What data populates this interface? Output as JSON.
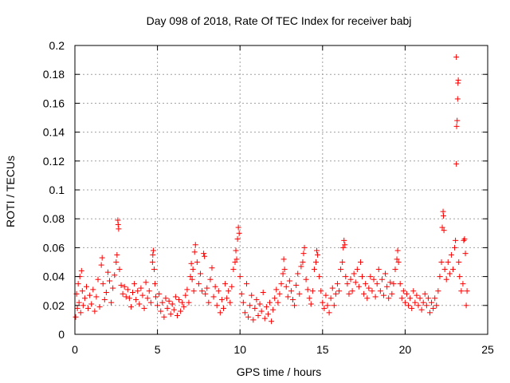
{
  "colors": {
    "series": "#ff0000",
    "grid": "#a0a0a0",
    "axis": "#000000",
    "background": "#ffffff"
  },
  "chart_data": {
    "type": "scatter",
    "title": "Day 098 of 2018, Rate Of TEC Index for receiver babj",
    "xlabel": "GPS time / hours",
    "ylabel": "ROTI / TECUs",
    "xlim": [
      0,
      25
    ],
    "ylim": [
      0,
      0.2
    ],
    "x_ticks": [
      0,
      5,
      10,
      15,
      20,
      25
    ],
    "x_tick_labels": [
      "0",
      "5",
      "10",
      "15",
      "20",
      "25"
    ],
    "y_ticks": [
      0,
      0.02,
      0.04,
      0.06,
      0.08,
      0.1,
      0.12,
      0.14,
      0.16,
      0.18,
      0.2
    ],
    "y_tick_labels": [
      "0",
      "0.02",
      "0.04",
      "0.06",
      "0.08",
      "0.1",
      "0.12",
      "0.14",
      "0.16",
      "0.18",
      "0.2"
    ],
    "grid": true,
    "marker": "+",
    "series": [
      {
        "name": "ROTI",
        "color": "#ff0000",
        "points": [
          [
            0.05,
            0.012
          ],
          [
            0.1,
            0.028
          ],
          [
            0.15,
            0.018
          ],
          [
            0.2,
            0.035
          ],
          [
            0.25,
            0.022
          ],
          [
            0.3,
            0.04
          ],
          [
            0.35,
            0.015
          ],
          [
            0.4,
            0.044
          ],
          [
            0.45,
            0.03
          ],
          [
            0.5,
            0.02
          ],
          [
            0.6,
            0.025
          ],
          [
            0.7,
            0.033
          ],
          [
            0.8,
            0.018
          ],
          [
            0.9,
            0.027
          ],
          [
            1.0,
            0.021
          ],
          [
            1.1,
            0.031
          ],
          [
            1.2,
            0.016
          ],
          [
            1.3,
            0.026
          ],
          [
            1.4,
            0.038
          ],
          [
            1.5,
            0.019
          ],
          [
            1.6,
            0.048
          ],
          [
            1.65,
            0.053
          ],
          [
            1.7,
            0.035
          ],
          [
            1.8,
            0.024
          ],
          [
            1.9,
            0.029
          ],
          [
            2.0,
            0.043
          ],
          [
            2.1,
            0.037
          ],
          [
            2.2,
            0.022
          ],
          [
            2.3,
            0.032
          ],
          [
            2.4,
            0.041
          ],
          [
            2.5,
            0.05
          ],
          [
            2.55,
            0.055
          ],
          [
            2.6,
            0.079
          ],
          [
            2.62,
            0.076
          ],
          [
            2.65,
            0.073
          ],
          [
            2.7,
            0.045
          ],
          [
            2.8,
            0.034
          ],
          [
            2.9,
            0.028
          ],
          [
            3.0,
            0.033
          ],
          [
            3.1,
            0.026
          ],
          [
            3.2,
            0.031
          ],
          [
            3.3,
            0.025
          ],
          [
            3.4,
            0.019
          ],
          [
            3.5,
            0.029
          ],
          [
            3.6,
            0.035
          ],
          [
            3.7,
            0.024
          ],
          [
            3.8,
            0.03
          ],
          [
            3.9,
            0.021
          ],
          [
            4.0,
            0.032
          ],
          [
            4.1,
            0.027
          ],
          [
            4.2,
            0.018
          ],
          [
            4.3,
            0.036
          ],
          [
            4.4,
            0.025
          ],
          [
            4.5,
            0.03
          ],
          [
            4.6,
            0.022
          ],
          [
            4.7,
            0.05
          ],
          [
            4.72,
            0.055
          ],
          [
            4.75,
            0.058
          ],
          [
            4.8,
            0.045
          ],
          [
            4.85,
            0.035
          ],
          [
            4.9,
            0.026
          ],
          [
            5.0,
            0.02
          ],
          [
            5.1,
            0.028
          ],
          [
            5.2,
            0.016
          ],
          [
            5.3,
            0.022
          ],
          [
            5.4,
            0.012
          ],
          [
            5.5,
            0.025
          ],
          [
            5.6,
            0.018
          ],
          [
            5.7,
            0.023
          ],
          [
            5.8,
            0.014
          ],
          [
            5.9,
            0.021
          ],
          [
            6.0,
            0.017
          ],
          [
            6.1,
            0.026
          ],
          [
            6.2,
            0.013
          ],
          [
            6.3,
            0.024
          ],
          [
            6.4,
            0.016
          ],
          [
            6.5,
            0.022
          ],
          [
            6.6,
            0.019
          ],
          [
            6.7,
            0.027
          ],
          [
            6.8,
            0.031
          ],
          [
            6.9,
            0.022
          ],
          [
            7.0,
            0.04
          ],
          [
            7.05,
            0.049
          ],
          [
            7.1,
            0.038
          ],
          [
            7.15,
            0.045
          ],
          [
            7.2,
            0.03
          ],
          [
            7.25,
            0.057
          ],
          [
            7.3,
            0.062
          ],
          [
            7.4,
            0.05
          ],
          [
            7.5,
            0.035
          ],
          [
            7.6,
            0.042
          ],
          [
            7.7,
            0.03
          ],
          [
            7.8,
            0.056
          ],
          [
            7.85,
            0.054
          ],
          [
            7.9,
            0.028
          ],
          [
            8.0,
            0.032
          ],
          [
            8.1,
            0.022
          ],
          [
            8.2,
            0.038
          ],
          [
            8.3,
            0.046
          ],
          [
            8.4,
            0.026
          ],
          [
            8.5,
            0.033
          ],
          [
            8.6,
            0.02
          ],
          [
            8.7,
            0.03
          ],
          [
            8.8,
            0.015
          ],
          [
            8.9,
            0.024
          ],
          [
            9.0,
            0.018
          ],
          [
            9.1,
            0.035
          ],
          [
            9.2,
            0.025
          ],
          [
            9.3,
            0.03
          ],
          [
            9.4,
            0.022
          ],
          [
            9.5,
            0.033
          ],
          [
            9.6,
            0.045
          ],
          [
            9.7,
            0.05
          ],
          [
            9.75,
            0.058
          ],
          [
            9.8,
            0.052
          ],
          [
            9.85,
            0.066
          ],
          [
            9.9,
            0.074
          ],
          [
            9.95,
            0.07
          ],
          [
            10.0,
            0.04
          ],
          [
            10.1,
            0.028
          ],
          [
            10.2,
            0.022
          ],
          [
            10.3,
            0.015
          ],
          [
            10.4,
            0.035
          ],
          [
            10.5,
            0.012
          ],
          [
            10.6,
            0.02
          ],
          [
            10.7,
            0.027
          ],
          [
            10.8,
            0.01
          ],
          [
            10.9,
            0.018
          ],
          [
            11.0,
            0.024
          ],
          [
            11.1,
            0.013
          ],
          [
            11.2,
            0.021
          ],
          [
            11.3,
            0.016
          ],
          [
            11.4,
            0.029
          ],
          [
            11.5,
            0.011
          ],
          [
            11.6,
            0.019
          ],
          [
            11.7,
            0.014
          ],
          [
            11.8,
            0.022
          ],
          [
            11.9,
            0.009
          ],
          [
            12.0,
            0.017
          ],
          [
            12.1,
            0.025
          ],
          [
            12.2,
            0.031
          ],
          [
            12.3,
            0.022
          ],
          [
            12.4,
            0.028
          ],
          [
            12.5,
            0.035
          ],
          [
            12.6,
            0.042
          ],
          [
            12.65,
            0.052
          ],
          [
            12.7,
            0.045
          ],
          [
            12.8,
            0.033
          ],
          [
            12.9,
            0.026
          ],
          [
            13.0,
            0.037
          ],
          [
            13.1,
            0.03
          ],
          [
            13.2,
            0.024
          ],
          [
            13.3,
            0.02
          ],
          [
            13.4,
            0.034
          ],
          [
            13.5,
            0.042
          ],
          [
            13.6,
            0.028
          ],
          [
            13.7,
            0.047
          ],
          [
            13.8,
            0.05
          ],
          [
            13.85,
            0.056
          ],
          [
            13.9,
            0.06
          ],
          [
            14.0,
            0.038
          ],
          [
            14.1,
            0.031
          ],
          [
            14.2,
            0.025
          ],
          [
            14.3,
            0.021
          ],
          [
            14.4,
            0.03
          ],
          [
            14.5,
            0.045
          ],
          [
            14.6,
            0.05
          ],
          [
            14.65,
            0.058
          ],
          [
            14.7,
            0.055
          ],
          [
            14.8,
            0.04
          ],
          [
            14.9,
            0.03
          ],
          [
            15.0,
            0.022
          ],
          [
            15.1,
            0.018
          ],
          [
            15.2,
            0.027
          ],
          [
            15.3,
            0.02
          ],
          [
            15.4,
            0.015
          ],
          [
            15.5,
            0.025
          ],
          [
            15.6,
            0.032
          ],
          [
            15.7,
            0.02
          ],
          [
            15.8,
            0.028
          ],
          [
            15.9,
            0.035
          ],
          [
            16.0,
            0.03
          ],
          [
            16.1,
            0.045
          ],
          [
            16.2,
            0.05
          ],
          [
            16.25,
            0.06
          ],
          [
            16.3,
            0.065
          ],
          [
            16.35,
            0.062
          ],
          [
            16.4,
            0.04
          ],
          [
            16.5,
            0.035
          ],
          [
            16.6,
            0.028
          ],
          [
            16.7,
            0.038
          ],
          [
            16.8,
            0.03
          ],
          [
            16.9,
            0.042
          ],
          [
            17.0,
            0.036
          ],
          [
            17.1,
            0.045
          ],
          [
            17.2,
            0.033
          ],
          [
            17.3,
            0.05
          ],
          [
            17.4,
            0.04
          ],
          [
            17.5,
            0.028
          ],
          [
            17.6,
            0.035
          ],
          [
            17.7,
            0.025
          ],
          [
            17.8,
            0.032
          ],
          [
            17.9,
            0.04
          ],
          [
            18.0,
            0.03
          ],
          [
            18.1,
            0.038
          ],
          [
            18.2,
            0.026
          ],
          [
            18.3,
            0.035
          ],
          [
            18.4,
            0.045
          ],
          [
            18.5,
            0.03
          ],
          [
            18.6,
            0.038
          ],
          [
            18.7,
            0.027
          ],
          [
            18.8,
            0.042
          ],
          [
            18.9,
            0.033
          ],
          [
            19.0,
            0.025
          ],
          [
            19.1,
            0.036
          ],
          [
            19.2,
            0.028
          ],
          [
            19.3,
            0.035
          ],
          [
            19.4,
            0.045
          ],
          [
            19.5,
            0.052
          ],
          [
            19.55,
            0.058
          ],
          [
            19.6,
            0.05
          ],
          [
            19.7,
            0.035
          ],
          [
            19.8,
            0.025
          ],
          [
            19.9,
            0.03
          ],
          [
            20.0,
            0.022
          ],
          [
            20.1,
            0.028
          ],
          [
            20.2,
            0.02
          ],
          [
            20.3,
            0.025
          ],
          [
            20.4,
            0.018
          ],
          [
            20.5,
            0.03
          ],
          [
            20.6,
            0.022
          ],
          [
            20.7,
            0.027
          ],
          [
            20.8,
            0.02
          ],
          [
            20.9,
            0.025
          ],
          [
            21.0,
            0.017
          ],
          [
            21.1,
            0.022
          ],
          [
            21.2,
            0.028
          ],
          [
            21.3,
            0.02
          ],
          [
            21.4,
            0.025
          ],
          [
            21.5,
            0.015
          ],
          [
            21.6,
            0.022
          ],
          [
            21.7,
            0.018
          ],
          [
            21.8,
            0.025
          ],
          [
            21.9,
            0.02
          ],
          [
            22.0,
            0.03
          ],
          [
            22.1,
            0.04
          ],
          [
            22.2,
            0.05
          ],
          [
            22.25,
            0.074
          ],
          [
            22.3,
            0.085
          ],
          [
            22.32,
            0.082
          ],
          [
            22.35,
            0.072
          ],
          [
            22.4,
            0.045
          ],
          [
            22.5,
            0.038
          ],
          [
            22.6,
            0.05
          ],
          [
            22.7,
            0.042
          ],
          [
            22.8,
            0.055
          ],
          [
            22.9,
            0.045
          ],
          [
            23.0,
            0.06
          ],
          [
            23.05,
            0.065
          ],
          [
            23.1,
            0.118
          ],
          [
            23.12,
            0.144
          ],
          [
            23.15,
            0.148
          ],
          [
            23.18,
            0.163
          ],
          [
            23.2,
            0.174
          ],
          [
            23.22,
            0.176
          ],
          [
            23.1,
            0.192
          ],
          [
            23.25,
            0.05
          ],
          [
            23.3,
            0.04
          ],
          [
            23.4,
            0.03
          ],
          [
            23.5,
            0.035
          ],
          [
            23.55,
            0.065
          ],
          [
            23.6,
            0.066
          ],
          [
            23.65,
            0.056
          ],
          [
            23.7,
            0.02
          ],
          [
            23.75,
            0.03
          ]
        ]
      }
    ]
  }
}
